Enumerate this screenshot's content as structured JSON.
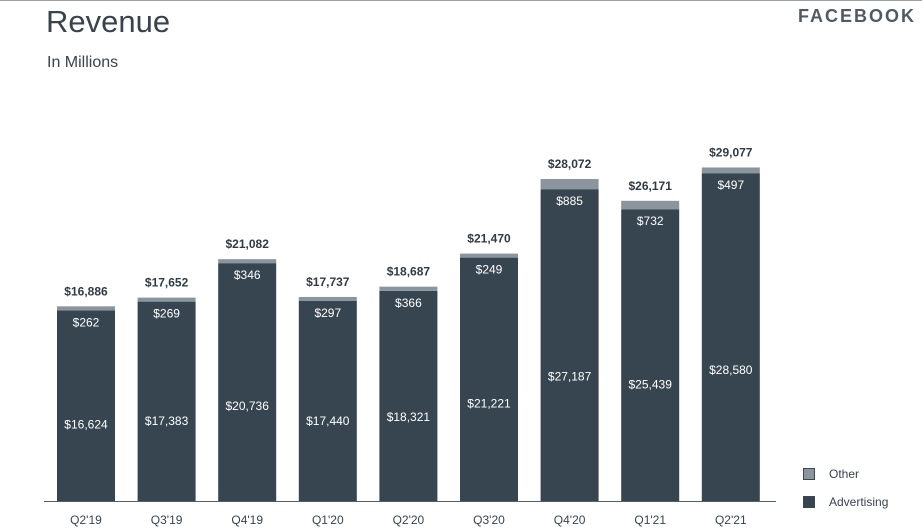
{
  "header": {
    "title": "Revenue",
    "subtitle": "In Millions",
    "brand": "FACEBOOK"
  },
  "legend": [
    {
      "label": "Other",
      "color": "#8a959d"
    },
    {
      "label": "Advertising",
      "color": "#36454f"
    }
  ],
  "chart_data": {
    "type": "bar",
    "stacked": true,
    "categories": [
      "Q2'19",
      "Q3'19",
      "Q4'19",
      "Q1'20",
      "Q2'20",
      "Q3'20",
      "Q4'20",
      "Q1'21",
      "Q2'21"
    ],
    "series": [
      {
        "name": "Advertising",
        "color": "#36454f",
        "values": [
          16624,
          17383,
          20736,
          17440,
          18321,
          21221,
          27187,
          25439,
          28580
        ]
      },
      {
        "name": "Other",
        "color": "#8a959d",
        "values": [
          262,
          269,
          346,
          297,
          366,
          249,
          885,
          732,
          497
        ]
      }
    ],
    "totals": [
      16886,
      17652,
      21082,
      17737,
      18687,
      21470,
      28072,
      26171,
      29077
    ],
    "advertising_labels": [
      "$16,624",
      "$17,383",
      "$20,736",
      "$17,440",
      "$18,321",
      "$21,221",
      "$27,187",
      "$25,439",
      "$28,580"
    ],
    "other_labels": [
      "$262",
      "$269",
      "$346",
      "$297",
      "$366",
      "$249",
      "$885",
      "$732",
      "$497"
    ],
    "total_labels": [
      "$16,886",
      "$17,652",
      "$21,082",
      "$17,737",
      "$18,687",
      "$21,470",
      "$28,072",
      "$26,171",
      "$29,077"
    ],
    "title": "Revenue",
    "ylabel": "",
    "xlabel": "",
    "grid": false,
    "legend_position": "bottom-right"
  }
}
